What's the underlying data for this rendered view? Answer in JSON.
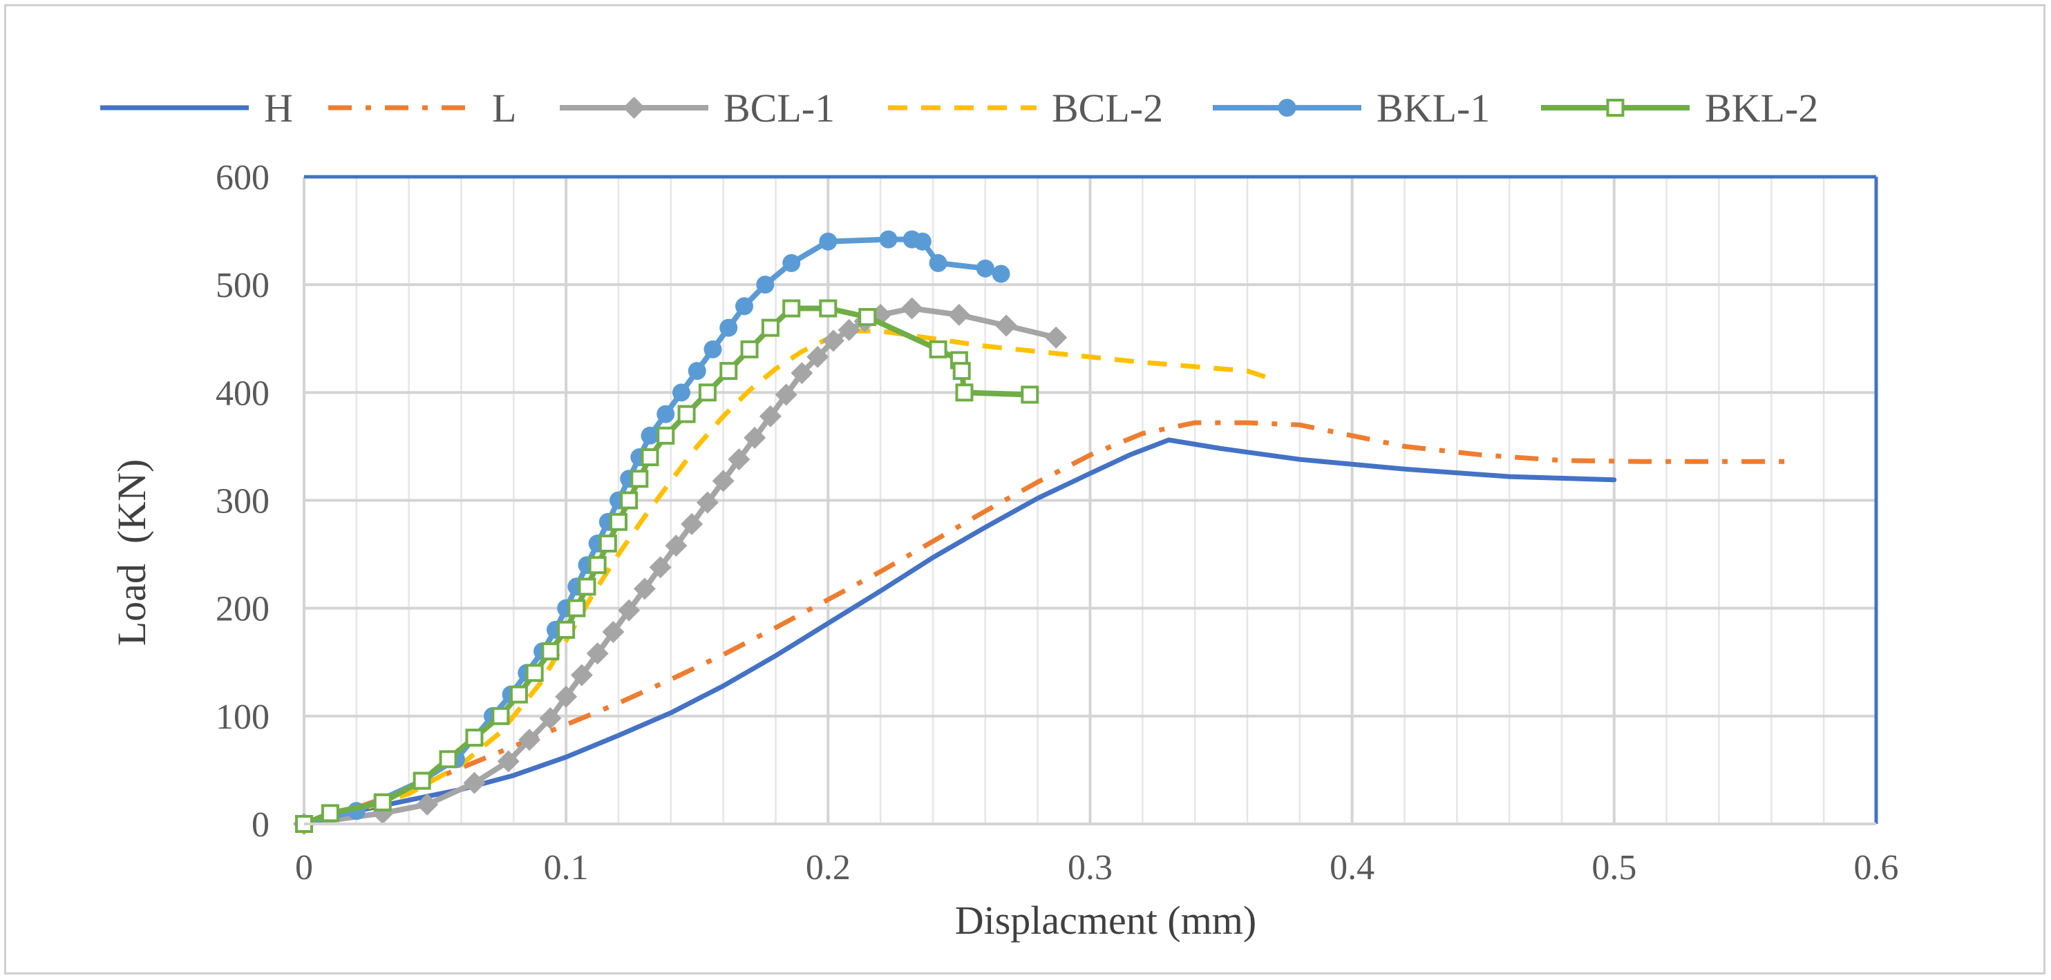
{
  "chart_data": {
    "type": "line",
    "title": "",
    "xlabel": "Displacment (mm)",
    "ylabel": "Load  (KN)",
    "xlim": [
      0,
      0.6
    ],
    "ylim": [
      0,
      600
    ],
    "x_ticks": [
      0,
      0.1,
      0.2,
      0.3,
      0.4,
      0.5,
      0.6
    ],
    "x_tick_labels": [
      "0",
      "0.1",
      "0.2",
      "0.3",
      "0.4",
      "0.5",
      "0.6"
    ],
    "y_ticks": [
      0,
      100,
      200,
      300,
      400,
      500,
      600
    ],
    "y_tick_labels": [
      "0",
      "100",
      "200",
      "300",
      "400",
      "500",
      "600"
    ],
    "minor_x_step": 0.02,
    "grid": true,
    "legend_position": "top",
    "series": [
      {
        "name": "H",
        "color": "#4472C4",
        "dash": "solid",
        "marker": "none",
        "x": [
          0,
          0.02,
          0.04,
          0.06,
          0.08,
          0.1,
          0.12,
          0.14,
          0.16,
          0.18,
          0.2,
          0.22,
          0.24,
          0.26,
          0.28,
          0.3,
          0.315,
          0.33,
          0.35,
          0.38,
          0.42,
          0.46,
          0.5
        ],
        "y": [
          0,
          12,
          22,
          32,
          45,
          62,
          82,
          103,
          128,
          156,
          186,
          216,
          247,
          275,
          302,
          325,
          342,
          356,
          348,
          338,
          329,
          322,
          319
        ]
      },
      {
        "name": "L",
        "color": "#ED7D31",
        "dash": "dashdot",
        "marker": "none",
        "x": [
          0,
          0.02,
          0.04,
          0.06,
          0.08,
          0.1,
          0.12,
          0.14,
          0.16,
          0.18,
          0.2,
          0.22,
          0.24,
          0.26,
          0.28,
          0.3,
          0.32,
          0.34,
          0.36,
          0.38,
          0.4,
          0.42,
          0.45,
          0.48,
          0.51,
          0.54,
          0.57
        ],
        "y": [
          0,
          15,
          32,
          52,
          72,
          92,
          112,
          134,
          157,
          182,
          208,
          234,
          262,
          290,
          317,
          342,
          362,
          372,
          372,
          370,
          360,
          350,
          342,
          337,
          336,
          336,
          336
        ]
      },
      {
        "name": "BCL-1",
        "color": "#A5A5A5",
        "dash": "solid",
        "marker": "diamond",
        "x": [
          0,
          0.03,
          0.047,
          0.065,
          0.078,
          0.086,
          0.094,
          0.1,
          0.106,
          0.112,
          0.118,
          0.124,
          0.13,
          0.136,
          0.142,
          0.148,
          0.154,
          0.16,
          0.166,
          0.172,
          0.178,
          0.184,
          0.19,
          0.196,
          0.202,
          0.208,
          0.214,
          0.22,
          0.232,
          0.25,
          0.268,
          0.287
        ],
        "y": [
          0,
          10,
          18,
          38,
          58,
          78,
          98,
          118,
          138,
          158,
          178,
          198,
          218,
          238,
          258,
          278,
          298,
          318,
          338,
          358,
          378,
          398,
          418,
          433,
          448,
          458,
          466,
          472,
          478,
          472,
          462,
          451
        ]
      },
      {
        "name": "BCL-2",
        "color": "#FFC000",
        "dash": "dashed",
        "marker": "none",
        "x": [
          0,
          0.02,
          0.04,
          0.06,
          0.075,
          0.09,
          0.1,
          0.11,
          0.12,
          0.13,
          0.14,
          0.15,
          0.16,
          0.17,
          0.18,
          0.19,
          0.2,
          0.21,
          0.22,
          0.24,
          0.26,
          0.28,
          0.3,
          0.32,
          0.34,
          0.36,
          0.37
        ],
        "y": [
          0,
          12,
          28,
          55,
          85,
          130,
          170,
          212,
          250,
          285,
          318,
          350,
          378,
          402,
          422,
          438,
          450,
          457,
          457,
          450,
          443,
          438,
          433,
          428,
          424,
          420,
          412
        ]
      },
      {
        "name": "BKL-1",
        "color": "#5B9BD5",
        "dash": "solid",
        "marker": "circle",
        "x": [
          0,
          0.02,
          0.045,
          0.058,
          0.065,
          0.072,
          0.079,
          0.085,
          0.091,
          0.096,
          0.1,
          0.104,
          0.108,
          0.112,
          0.116,
          0.12,
          0.124,
          0.128,
          0.132,
          0.138,
          0.144,
          0.15,
          0.156,
          0.162,
          0.168,
          0.176,
          0.186,
          0.2,
          0.223,
          0.232,
          0.236,
          0.242,
          0.26,
          0.266
        ],
        "y": [
          0,
          12,
          40,
          60,
          80,
          100,
          120,
          140,
          160,
          180,
          200,
          220,
          240,
          260,
          280,
          300,
          320,
          340,
          360,
          380,
          400,
          420,
          440,
          460,
          480,
          500,
          520,
          540,
          542,
          542,
          540,
          520,
          515,
          510
        ]
      },
      {
        "name": "BKL-2",
        "color": "#70AD47",
        "dash": "solid",
        "marker": "square-open",
        "x": [
          0,
          0.01,
          0.03,
          0.045,
          0.055,
          0.065,
          0.075,
          0.082,
          0.088,
          0.094,
          0.1,
          0.104,
          0.108,
          0.112,
          0.116,
          0.12,
          0.124,
          0.128,
          0.132,
          0.138,
          0.146,
          0.154,
          0.162,
          0.17,
          0.178,
          0.186,
          0.2,
          0.215,
          0.242,
          0.25,
          0.251,
          0.252,
          0.277
        ],
        "y": [
          0,
          10,
          20,
          40,
          60,
          80,
          100,
          120,
          140,
          160,
          180,
          200,
          220,
          240,
          260,
          280,
          300,
          320,
          340,
          360,
          380,
          400,
          420,
          440,
          460,
          478,
          478,
          470,
          440,
          430,
          420,
          400,
          398
        ]
      }
    ]
  }
}
